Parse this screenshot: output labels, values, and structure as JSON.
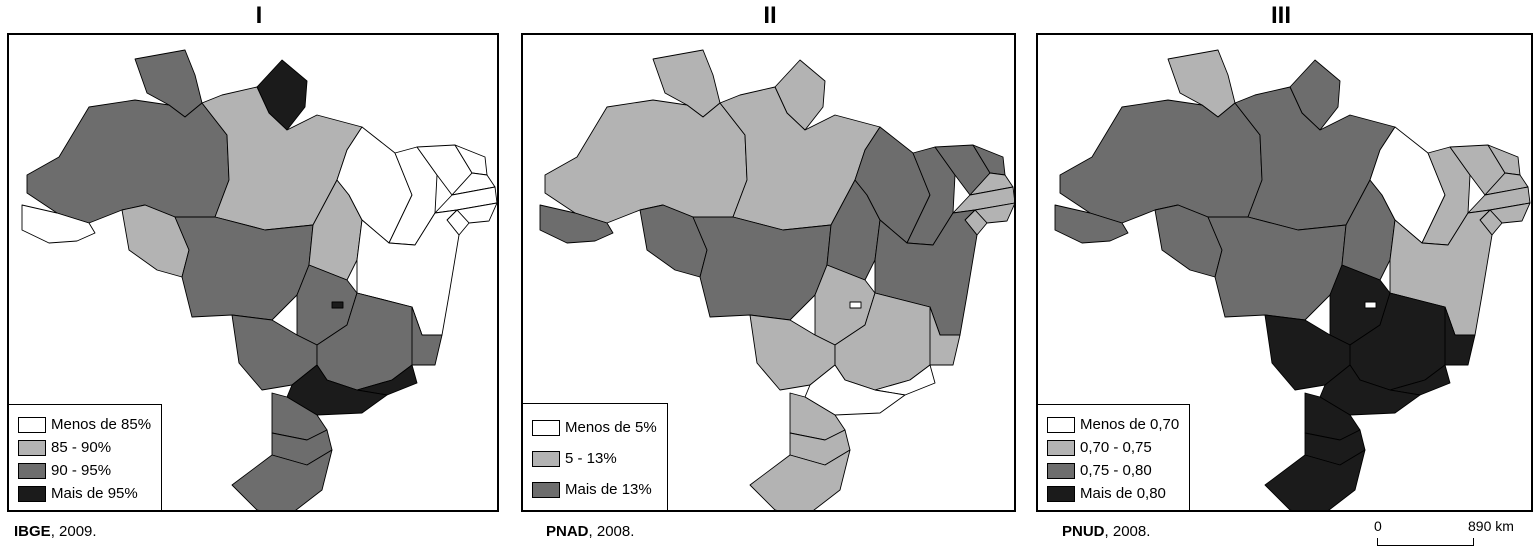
{
  "colors": {
    "level0": "#ffffff",
    "level1": "#b3b3b3",
    "level2": "#6d6d6d",
    "level3": "#1b1b1b"
  },
  "maps": [
    {
      "title": "I",
      "legend": [
        "Menos de 85%",
        "85 - 90%",
        "90 - 95%",
        "Mais de 95%"
      ],
      "source_org": "IBGE",
      "source_year": ", 2009.",
      "regions": {
        "AC": 0,
        "AM": 2,
        "RR": 2,
        "PA": 1,
        "AP": 3,
        "MA": 0,
        "PI": 0,
        "CE": 0,
        "RN": 0,
        "PB": 0,
        "PE": 0,
        "AL": 0,
        "SE": 0,
        "BA": 0,
        "TO": 1,
        "RO": 1,
        "MT": 2,
        "GO": 2,
        "DF": 3,
        "MS": 2,
        "MG": 2,
        "ES": 2,
        "RJ": 3,
        "SP": 3,
        "PR": 2,
        "SC": 2,
        "RS": 2
      }
    },
    {
      "title": "II",
      "legend": [
        "Menos de 5%",
        "5 - 13%",
        "Mais de 13%"
      ],
      "source_org": "PNAD",
      "source_year": ", 2008.",
      "regions": {
        "AC": 2,
        "AM": 1,
        "RR": 1,
        "PA": 1,
        "AP": 1,
        "MA": 2,
        "PI": 2,
        "CE": 2,
        "RN": 2,
        "PB": 1,
        "PE": 1,
        "AL": 1,
        "SE": 1,
        "BA": 2,
        "TO": 2,
        "RO": 2,
        "MT": 2,
        "GO": 1,
        "DF": 0,
        "MS": 1,
        "MG": 1,
        "ES": 1,
        "RJ": 0,
        "SP": 0,
        "PR": 1,
        "SC": 1,
        "RS": 1
      }
    },
    {
      "title": "III",
      "legend": [
        "Menos de 0,70",
        "0,70 - 0,75",
        "0,75 - 0,80",
        "Mais de 0,80"
      ],
      "source_org": "PNUD",
      "source_year": ", 2008.",
      "regions": {
        "AC": 2,
        "AM": 2,
        "RR": 1,
        "PA": 2,
        "AP": 2,
        "MA": 0,
        "PI": 1,
        "CE": 1,
        "RN": 1,
        "PB": 1,
        "PE": 1,
        "AL": 1,
        "SE": 1,
        "BA": 1,
        "TO": 2,
        "RO": 2,
        "MT": 2,
        "GO": 3,
        "DF": 0,
        "MS": 3,
        "MG": 3,
        "ES": 3,
        "RJ": 3,
        "SP": 3,
        "PR": 3,
        "SC": 3,
        "RS": 3
      }
    }
  ],
  "scale": {
    "start": "0",
    "end": "890 km"
  }
}
